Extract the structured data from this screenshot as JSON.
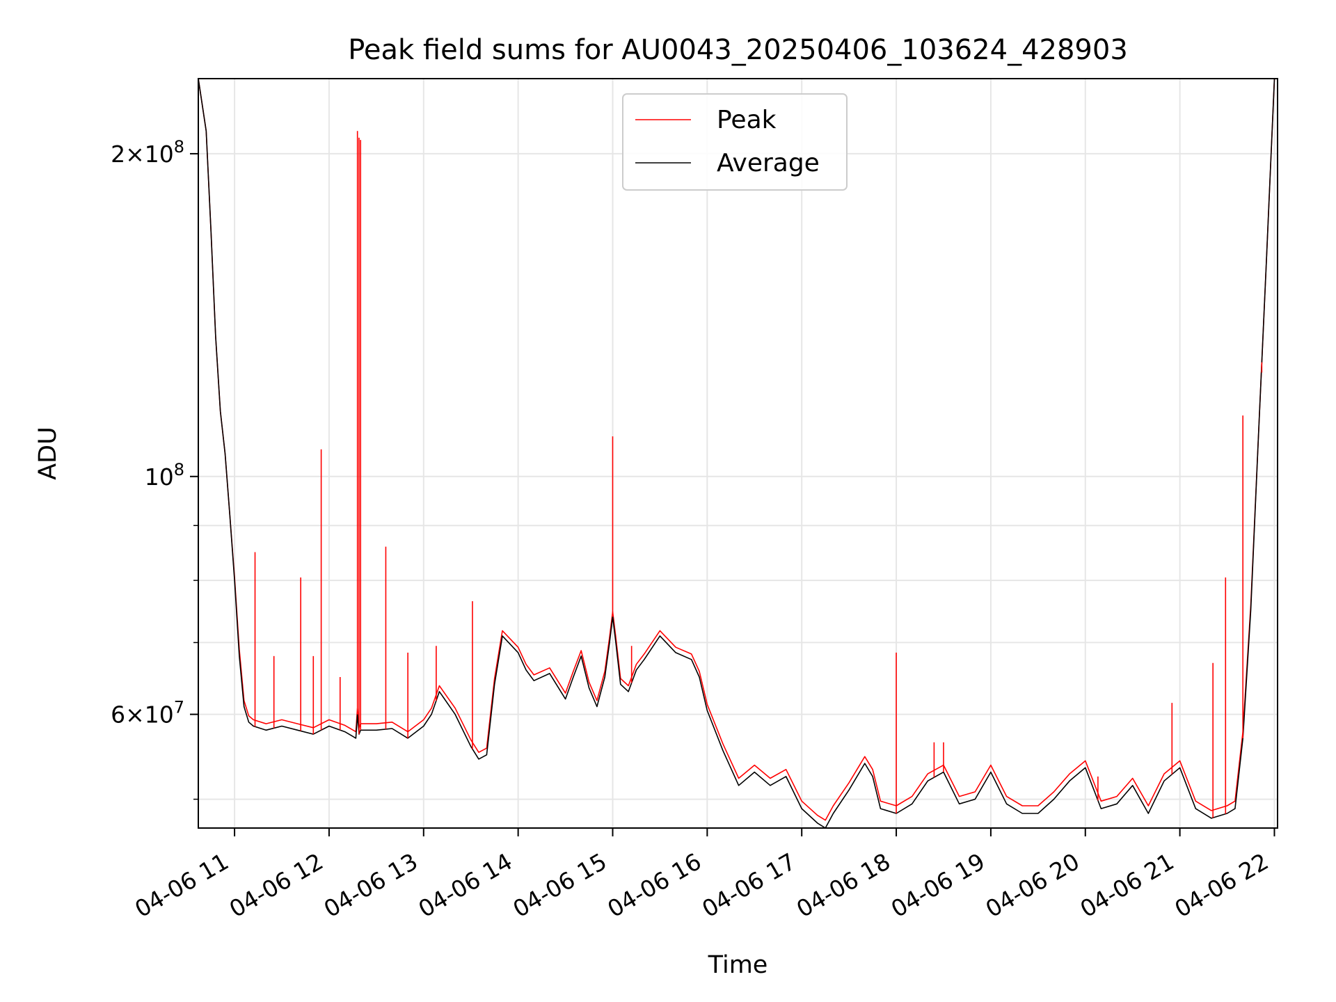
{
  "chart_data": {
    "type": "line",
    "title": "Peak field sums for AU0043_20250406_103624_428903",
    "xlabel": "Time",
    "ylabel": "ADU",
    "yscale": "log",
    "grid": true,
    "legend_position": "top-center",
    "xlim": [
      "2025-04-06 10:37",
      "2025-04-06 22:02"
    ],
    "ylim": [
      47000000,
      235000000
    ],
    "x_ticks": [
      {
        "value": "2025-04-06 11:00",
        "label": "04-06 11"
      },
      {
        "value": "2025-04-06 12:00",
        "label": "04-06 12"
      },
      {
        "value": "2025-04-06 13:00",
        "label": "04-06 13"
      },
      {
        "value": "2025-04-06 14:00",
        "label": "04-06 14"
      },
      {
        "value": "2025-04-06 15:00",
        "label": "04-06 15"
      },
      {
        "value": "2025-04-06 16:00",
        "label": "04-06 16"
      },
      {
        "value": "2025-04-06 17:00",
        "label": "04-06 17"
      },
      {
        "value": "2025-04-06 18:00",
        "label": "04-06 18"
      },
      {
        "value": "2025-04-06 19:00",
        "label": "04-06 19"
      },
      {
        "value": "2025-04-06 20:00",
        "label": "04-06 20"
      },
      {
        "value": "2025-04-06 21:00",
        "label": "04-06 21"
      },
      {
        "value": "2025-04-06 22:00",
        "label": "04-06 22"
      }
    ],
    "y_major_ticks": [
      {
        "value": 60000000,
        "mant": "6",
        "exp": "7"
      },
      {
        "value": 100000000,
        "mant": "",
        "exp": "8"
      },
      {
        "value": 200000000,
        "mant": "2",
        "exp": "8"
      }
    ],
    "y_minor_ticks": [
      50000000,
      70000000,
      80000000,
      90000000
    ],
    "series": [
      {
        "name": "Average",
        "color": "#000000",
        "x": [
          "2025-04-06 10:37",
          "2025-04-06 10:42",
          "2025-04-06 10:45",
          "2025-04-06 10:48",
          "2025-04-06 10:51",
          "2025-04-06 10:54",
          "2025-04-06 10:57",
          "2025-04-06 11:00",
          "2025-04-06 11:03",
          "2025-04-06 11:06",
          "2025-04-06 11:09",
          "2025-04-06 11:12",
          "2025-04-06 11:20",
          "2025-04-06 11:30",
          "2025-04-06 11:40",
          "2025-04-06 11:50",
          "2025-04-06 12:00",
          "2025-04-06 12:10",
          "2025-04-06 12:17",
          "2025-04-06 12:18",
          "2025-04-06 12:19",
          "2025-04-06 12:20",
          "2025-04-06 12:30",
          "2025-04-06 12:40",
          "2025-04-06 12:50",
          "2025-04-06 13:00",
          "2025-04-06 13:05",
          "2025-04-06 13:10",
          "2025-04-06 13:20",
          "2025-04-06 13:30",
          "2025-04-06 13:35",
          "2025-04-06 13:40",
          "2025-04-06 13:45",
          "2025-04-06 13:50",
          "2025-04-06 14:00",
          "2025-04-06 14:05",
          "2025-04-06 14:10",
          "2025-04-06 14:20",
          "2025-04-06 14:30",
          "2025-04-06 14:35",
          "2025-04-06 14:40",
          "2025-04-06 14:45",
          "2025-04-06 14:50",
          "2025-04-06 14:55",
          "2025-04-06 14:58",
          "2025-04-06 15:00",
          "2025-04-06 15:02",
          "2025-04-06 15:05",
          "2025-04-06 15:10",
          "2025-04-06 15:15",
          "2025-04-06 15:20",
          "2025-04-06 15:30",
          "2025-04-06 15:40",
          "2025-04-06 15:50",
          "2025-04-06 15:55",
          "2025-04-06 16:00",
          "2025-04-06 16:10",
          "2025-04-06 16:20",
          "2025-04-06 16:30",
          "2025-04-06 16:40",
          "2025-04-06 16:50",
          "2025-04-06 17:00",
          "2025-04-06 17:10",
          "2025-04-06 17:15",
          "2025-04-06 17:20",
          "2025-04-06 17:30",
          "2025-04-06 17:40",
          "2025-04-06 17:45",
          "2025-04-06 17:50",
          "2025-04-06 18:00",
          "2025-04-06 18:10",
          "2025-04-06 18:20",
          "2025-04-06 18:30",
          "2025-04-06 18:40",
          "2025-04-06 18:50",
          "2025-04-06 19:00",
          "2025-04-06 19:10",
          "2025-04-06 19:20",
          "2025-04-06 19:30",
          "2025-04-06 19:40",
          "2025-04-06 19:50",
          "2025-04-06 20:00",
          "2025-04-06 20:10",
          "2025-04-06 20:20",
          "2025-04-06 20:30",
          "2025-04-06 20:40",
          "2025-04-06 20:50",
          "2025-04-06 21:00",
          "2025-04-06 21:10",
          "2025-04-06 21:20",
          "2025-04-06 21:30",
          "2025-04-06 21:35",
          "2025-04-06 21:40",
          "2025-04-06 21:45",
          "2025-04-06 21:50",
          "2025-04-06 21:55",
          "2025-04-06 22:00"
        ],
        "values": [
          235000000,
          210000000,
          170000000,
          135000000,
          115000000,
          105000000,
          92000000,
          80000000,
          68000000,
          61000000,
          59000000,
          58500000,
          58000000,
          58500000,
          58000000,
          57500000,
          58500000,
          57800000,
          57000000,
          60000000,
          57500000,
          58000000,
          58000000,
          58200000,
          57000000,
          58500000,
          60000000,
          63000000,
          60000000,
          56000000,
          54500000,
          55000000,
          64000000,
          71000000,
          68500000,
          66000000,
          64500000,
          65500000,
          62000000,
          65000000,
          68000000,
          63500000,
          61000000,
          65000000,
          70000000,
          74000000,
          70000000,
          64000000,
          63000000,
          66000000,
          67500000,
          71000000,
          68500000,
          67500000,
          65000000,
          60500000,
          55500000,
          51500000,
          53000000,
          51500000,
          52500000,
          49000000,
          47500000,
          47000000,
          48500000,
          51000000,
          54000000,
          52500000,
          49000000,
          48500000,
          49500000,
          52000000,
          53000000,
          49500000,
          50000000,
          53000000,
          49500000,
          48500000,
          48500000,
          50000000,
          52000000,
          53500000,
          49000000,
          49500000,
          51500000,
          48500000,
          52000000,
          53500000,
          49000000,
          48000000,
          48500000,
          49000000,
          57000000,
          75000000,
          110000000,
          160000000,
          235000000
        ]
      },
      {
        "name": "Peak",
        "color": "#ff0000",
        "x": [
          "2025-04-06 10:37",
          "2025-04-06 10:42",
          "2025-04-06 10:45",
          "2025-04-06 10:48",
          "2025-04-06 10:51",
          "2025-04-06 10:54",
          "2025-04-06 10:57",
          "2025-04-06 11:00",
          "2025-04-06 11:03",
          "2025-04-06 11:06",
          "2025-04-06 11:09",
          "2025-04-06 11:12",
          "2025-04-06 11:20",
          "2025-04-06 11:30",
          "2025-04-06 11:40",
          "2025-04-06 11:50",
          "2025-04-06 12:00",
          "2025-04-06 12:10",
          "2025-04-06 12:17",
          "2025-04-06 12:18",
          "2025-04-06 12:19",
          "2025-04-06 12:20",
          "2025-04-06 12:30",
          "2025-04-06 12:40",
          "2025-04-06 12:50",
          "2025-04-06 13:00",
          "2025-04-06 13:05",
          "2025-04-06 13:10",
          "2025-04-06 13:20",
          "2025-04-06 13:30",
          "2025-04-06 13:35",
          "2025-04-06 13:40",
          "2025-04-06 13:45",
          "2025-04-06 13:50",
          "2025-04-06 14:00",
          "2025-04-06 14:05",
          "2025-04-06 14:10",
          "2025-04-06 14:20",
          "2025-04-06 14:30",
          "2025-04-06 14:35",
          "2025-04-06 14:40",
          "2025-04-06 14:45",
          "2025-04-06 14:50",
          "2025-04-06 14:55",
          "2025-04-06 14:58",
          "2025-04-06 15:00",
          "2025-04-06 15:02",
          "2025-04-06 15:05",
          "2025-04-06 15:10",
          "2025-04-06 15:15",
          "2025-04-06 15:20",
          "2025-04-06 15:30",
          "2025-04-06 15:40",
          "2025-04-06 15:50",
          "2025-04-06 15:55",
          "2025-04-06 16:00",
          "2025-04-06 16:10",
          "2025-04-06 16:20",
          "2025-04-06 16:30",
          "2025-04-06 16:40",
          "2025-04-06 16:50",
          "2025-04-06 17:00",
          "2025-04-06 17:10",
          "2025-04-06 17:15",
          "2025-04-06 17:20",
          "2025-04-06 17:30",
          "2025-04-06 17:40",
          "2025-04-06 17:45",
          "2025-04-06 17:50",
          "2025-04-06 18:00",
          "2025-04-06 18:10",
          "2025-04-06 18:20",
          "2025-04-06 18:30",
          "2025-04-06 18:40",
          "2025-04-06 18:50",
          "2025-04-06 19:00",
          "2025-04-06 19:10",
          "2025-04-06 19:20",
          "2025-04-06 19:30",
          "2025-04-06 19:40",
          "2025-04-06 19:50",
          "2025-04-06 20:00",
          "2025-04-06 20:10",
          "2025-04-06 20:20",
          "2025-04-06 20:30",
          "2025-04-06 20:40",
          "2025-04-06 20:50",
          "2025-04-06 21:00",
          "2025-04-06 21:10",
          "2025-04-06 21:20",
          "2025-04-06 21:30",
          "2025-04-06 21:35",
          "2025-04-06 21:40",
          "2025-04-06 21:45",
          "2025-04-06 21:50",
          "2025-04-06 21:55",
          "2025-04-06 22:00"
        ],
        "values": [
          235000000,
          210000000,
          170000000,
          135000000,
          115000000,
          105000000,
          92000000,
          80500000,
          69000000,
          61800000,
          59800000,
          59300000,
          58800000,
          59300000,
          58800000,
          58300000,
          59300000,
          58600000,
          57800000,
          60800000,
          58300000,
          58800000,
          58800000,
          59000000,
          57800000,
          59300000,
          60800000,
          63800000,
          60800000,
          56800000,
          55300000,
          55800000,
          64800000,
          71800000,
          69300000,
          66800000,
          65300000,
          66300000,
          62800000,
          65800000,
          68800000,
          64300000,
          61800000,
          65800000,
          70800000,
          74800000,
          70800000,
          64800000,
          63800000,
          66800000,
          68300000,
          71800000,
          69300000,
          68300000,
          65800000,
          61300000,
          56300000,
          52300000,
          53800000,
          52300000,
          53300000,
          49800000,
          48300000,
          47800000,
          49300000,
          51800000,
          54800000,
          53300000,
          49800000,
          49300000,
          50300000,
          52800000,
          53800000,
          50300000,
          50800000,
          53800000,
          50300000,
          49300000,
          49300000,
          50800000,
          52800000,
          54300000,
          49800000,
          50300000,
          52300000,
          49300000,
          52800000,
          54300000,
          49800000,
          48800000,
          49300000,
          49800000,
          57800000,
          75800000,
          110000000,
          160000000,
          235000000
        ]
      }
    ],
    "peak_spikes": [
      {
        "x": "2025-04-06 11:13",
        "value": 85000000
      },
      {
        "x": "2025-04-06 11:25",
        "value": 68000000
      },
      {
        "x": "2025-04-06 11:42",
        "value": 80500000
      },
      {
        "x": "2025-04-06 11:50",
        "value": 68000000
      },
      {
        "x": "2025-04-06 11:55",
        "value": 106000000
      },
      {
        "x": "2025-04-06 12:07",
        "value": 65000000
      },
      {
        "x": "2025-04-06 12:18",
        "value": 210000000
      },
      {
        "x": "2025-04-06 12:19",
        "value": 207000000
      },
      {
        "x": "2025-04-06 12:20",
        "value": 206000000
      },
      {
        "x": "2025-04-06 12:36",
        "value": 86000000
      },
      {
        "x": "2025-04-06 12:50",
        "value": 68500000
      },
      {
        "x": "2025-04-06 13:08",
        "value": 69500000
      },
      {
        "x": "2025-04-06 13:31",
        "value": 76500000
      },
      {
        "x": "2025-04-06 15:00",
        "value": 109000000
      },
      {
        "x": "2025-04-06 15:12",
        "value": 69500000
      },
      {
        "x": "2025-04-06 18:00",
        "value": 68500000
      },
      {
        "x": "2025-04-06 18:24",
        "value": 56500000
      },
      {
        "x": "2025-04-06 18:30",
        "value": 56500000
      },
      {
        "x": "2025-04-06 20:08",
        "value": 52500000
      },
      {
        "x": "2025-04-06 20:55",
        "value": 61500000
      },
      {
        "x": "2025-04-06 21:21",
        "value": 67000000
      },
      {
        "x": "2025-04-06 21:29",
        "value": 80500000
      },
      {
        "x": "2025-04-06 21:40",
        "value": 114000000
      },
      {
        "x": "2025-04-06 21:52",
        "value": 125000000
      }
    ]
  }
}
